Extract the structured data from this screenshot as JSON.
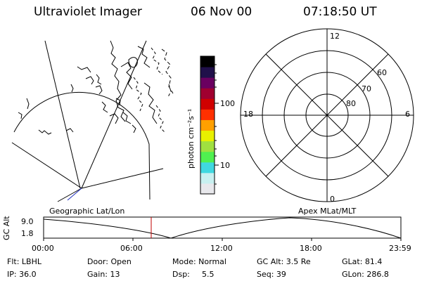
{
  "header": {
    "instrument": "Ultraviolet Imager",
    "date": "06 Nov 00",
    "time": "07:18:50 UT"
  },
  "colorbar": {
    "unit_label": "photon cm⁻²s⁻¹",
    "tick_100": "100",
    "tick_10": "10",
    "colors": [
      "#e8e8ec",
      "#c8f0f0",
      "#40d8e0",
      "#50f050",
      "#a0e040",
      "#e8f000",
      "#ffa000",
      "#ff3000",
      "#d00000",
      "#a00030",
      "#6a0060",
      "#20104a",
      "#000000"
    ]
  },
  "left_map": {
    "label": "Geographic Lat/Lon"
  },
  "polar_plot": {
    "label": "Apex MLat/MLT",
    "mlt_12": "12",
    "mlt_18": "18",
    "mlt_6": "6",
    "mlt_0": "0",
    "lat_60": "60",
    "lat_70": "70",
    "lat_80": "80"
  },
  "timeline": {
    "y_axis_label": "GC Alt",
    "y_max": "9.0",
    "y_min": "1.8",
    "ticks": [
      "00:00",
      "06:00",
      "12:00",
      "18:00",
      "23:59"
    ],
    "marker_color": "#c00000"
  },
  "status": {
    "flt": "Flt: LBHL",
    "ip": "IP: 36.0",
    "door": "Door: Open",
    "gain": "Gain: 13",
    "mode": "Mode: Normal",
    "dsp_label": "Dsp:",
    "dsp_value": "5.5",
    "gc_alt": "GC Alt: 3.5 Re",
    "seq": "Seq: 39",
    "glat": "GLat: 81.4",
    "glon": "GLon: 286.8"
  }
}
